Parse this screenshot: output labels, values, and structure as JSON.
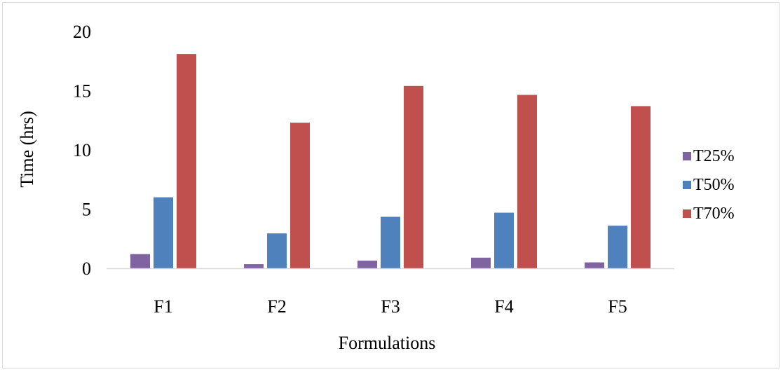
{
  "chart_data": {
    "type": "bar",
    "title": "",
    "xlabel": "Formulations",
    "ylabel": "Time (hrs)",
    "categories": [
      "F1",
      "F2",
      "F3",
      "F4",
      "F5"
    ],
    "ylim": [
      0,
      20
    ],
    "yticks": [
      "0",
      "5",
      "10",
      "15",
      "20"
    ],
    "grid": false,
    "legend_position": "right",
    "series": [
      {
        "name": "T25%",
        "color": "#8064A2",
        "values": [
          1.2,
          0.35,
          0.65,
          0.9,
          0.5
        ]
      },
      {
        "name": "T50%",
        "color": "#4F81BD",
        "values": [
          6.0,
          2.95,
          4.35,
          4.7,
          3.6
        ]
      },
      {
        "name": "T70%",
        "color": "#C0504D",
        "values": [
          18.1,
          12.3,
          15.4,
          14.65,
          13.7
        ]
      }
    ]
  }
}
